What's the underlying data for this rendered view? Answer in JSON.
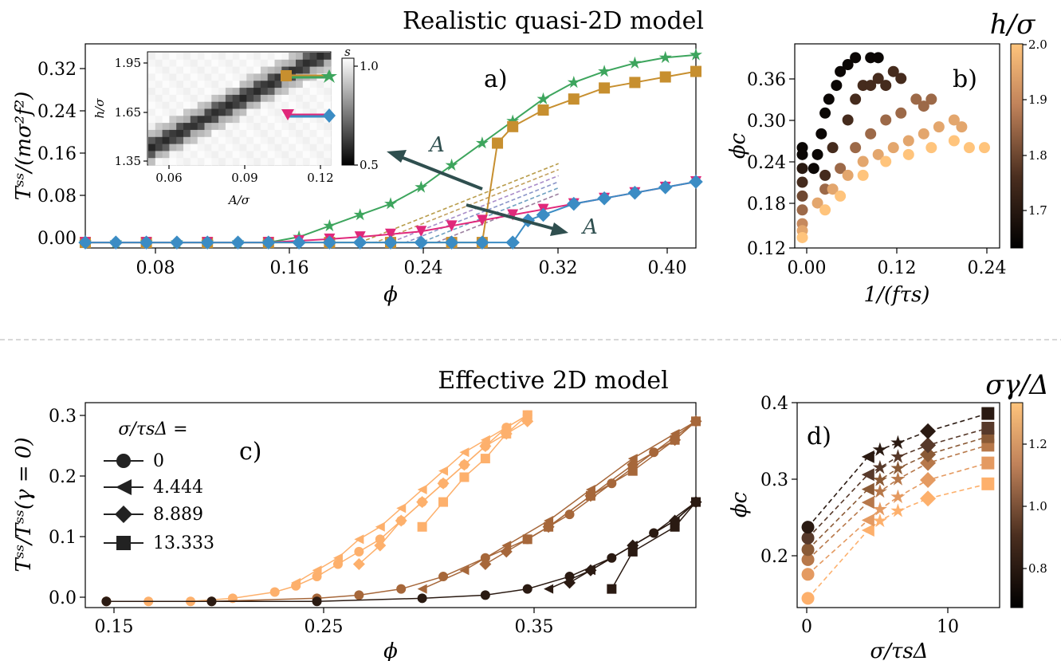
{
  "titles": {
    "top": "Realistic quasi-2D model",
    "bottom": "Effective 2D model"
  },
  "labels": {
    "a_x": "ϕ",
    "a_y": "Tˢˢ/(mσ²f²)",
    "b_x": "1/(fτs)",
    "b_y": "ϕc",
    "b_cbar": "h/σ",
    "c_x": "ϕ",
    "c_y": "Tˢˢ/Tˢˢ(γ = 0)",
    "d_x": "σ/τsΔ",
    "d_y": "ϕc",
    "d_cbar": "σγ/Δ",
    "inset_x": "A/σ",
    "inset_y": "h/σ",
    "inset_cbar": "s",
    "arrow_A1": "A",
    "arrow_A2": "A",
    "legend_title": "σ/τsΔ ="
  },
  "panel_labels": {
    "a": "a)",
    "b": "b)",
    "c": "c)",
    "d": "d)"
  },
  "ticks": {
    "a_x": [
      "0.08",
      "0.16",
      "0.24",
      "0.32",
      "0.40"
    ],
    "a_y": [
      "0.00",
      "0.08",
      "0.16",
      "0.24",
      "0.32"
    ],
    "b_x": [
      "0.00",
      "0.12",
      "0.24"
    ],
    "b_y": [
      "0.12",
      "0.18",
      "0.24",
      "0.30",
      "0.36"
    ],
    "b_cbar": [
      "1.7",
      "1.8",
      "1.9",
      "2.0"
    ],
    "c_x": [
      "0.15",
      "0.25",
      "0.35"
    ],
    "c_y": [
      "0.0",
      "0.1",
      "0.2",
      "0.3"
    ],
    "d_x": [
      "0",
      "10"
    ],
    "d_y": [
      "0.2",
      "0.3",
      "0.4"
    ],
    "d_cbar": [
      "0.8",
      "1.0",
      "1.2"
    ],
    "inset_x": [
      "0.06",
      "0.09",
      "0.12"
    ],
    "inset_y": [
      "1.35",
      "1.65",
      "1.95"
    ],
    "inset_cbar": [
      "0.5",
      "1.0"
    ]
  },
  "chart_data": [
    {
      "id": "a",
      "type": "line",
      "xlim": [
        0.04,
        0.44
      ],
      "ylim": [
        -0.01,
        0.36
      ],
      "series": [
        {
          "marker": "star",
          "color": "#3da55d",
          "x": [
            0.04,
            0.06,
            0.08,
            0.1,
            0.12,
            0.14,
            0.16,
            0.18,
            0.2,
            0.22,
            0.24,
            0.26,
            0.28,
            0.3,
            0.32,
            0.34,
            0.36,
            0.38,
            0.4,
            0.42,
            0.44
          ],
          "y": [
            0.0,
            0.0,
            0.0,
            0.0,
            0.0,
            0.0,
            0.0,
            0.01,
            0.03,
            0.05,
            0.07,
            0.1,
            0.14,
            0.18,
            0.22,
            0.26,
            0.29,
            0.31,
            0.325,
            0.335,
            0.34
          ]
        },
        {
          "marker": "square",
          "color": "#c78f2f",
          "x": [
            0.04,
            0.08,
            0.12,
            0.16,
            0.2,
            0.24,
            0.28,
            0.3,
            0.31,
            0.32,
            0.34,
            0.36,
            0.38,
            0.4,
            0.42,
            0.44
          ],
          "y": [
            0.0,
            0.0,
            0.0,
            0.0,
            0.0,
            0.0,
            0.0,
            0.0,
            0.18,
            0.21,
            0.24,
            0.26,
            0.28,
            0.29,
            0.3,
            0.31
          ]
        },
        {
          "marker": "tri_down",
          "color": "#e0287a",
          "x": [
            0.04,
            0.08,
            0.12,
            0.16,
            0.18,
            0.2,
            0.22,
            0.24,
            0.26,
            0.28,
            0.3,
            0.32,
            0.34,
            0.36,
            0.38,
            0.4,
            0.42,
            0.44
          ],
          "y": [
            0.0,
            0.0,
            0.0,
            0.0,
            0.003,
            0.006,
            0.01,
            0.015,
            0.02,
            0.03,
            0.04,
            0.05,
            0.06,
            0.07,
            0.08,
            0.09,
            0.1,
            0.11
          ]
        },
        {
          "marker": "diamond",
          "color": "#3b8cc4",
          "x": [
            0.04,
            0.06,
            0.08,
            0.1,
            0.12,
            0.14,
            0.16,
            0.18,
            0.2,
            0.22,
            0.24,
            0.26,
            0.28,
            0.3,
            0.32,
            0.33,
            0.34,
            0.36,
            0.38,
            0.4,
            0.42,
            0.44
          ],
          "y": [
            0.0,
            0.0,
            0.0,
            0.0,
            0.0,
            0.0,
            0.0,
            0.0,
            0.0,
            0.0,
            0.0,
            0.0,
            0.0,
            0.0,
            0.0,
            0.04,
            0.05,
            0.07,
            0.08,
            0.09,
            0.1,
            0.11
          ]
        }
      ]
    },
    {
      "id": "b",
      "type": "scatter",
      "xlim": [
        -0.01,
        0.26
      ],
      "ylim": [
        0.115,
        0.41
      ],
      "colorbar": {
        "label": "h/σ",
        "range": [
          1.63,
          2.0
        ]
      },
      "points": [
        {
          "x": 0.0,
          "y": 0.26,
          "c": 1.65
        },
        {
          "x": 0.0,
          "y": 0.25,
          "c": 1.65
        },
        {
          "x": 0.0,
          "y": 0.23,
          "c": 1.7
        },
        {
          "x": 0.0,
          "y": 0.21,
          "c": 1.75
        },
        {
          "x": 0.0,
          "y": 0.19,
          "c": 1.8
        },
        {
          "x": 0.0,
          "y": 0.17,
          "c": 1.85
        },
        {
          "x": 0.0,
          "y": 0.15,
          "c": 1.9
        },
        {
          "x": 0.0,
          "y": 0.14,
          "c": 1.95
        },
        {
          "x": 0.0,
          "y": 0.13,
          "c": 2.0
        },
        {
          "x": 0.015,
          "y": 0.23,
          "c": 1.65
        },
        {
          "x": 0.02,
          "y": 0.25,
          "c": 1.65
        },
        {
          "x": 0.025,
          "y": 0.28,
          "c": 1.65
        },
        {
          "x": 0.03,
          "y": 0.31,
          "c": 1.65
        },
        {
          "x": 0.035,
          "y": 0.33,
          "c": 1.65
        },
        {
          "x": 0.045,
          "y": 0.35,
          "c": 1.65
        },
        {
          "x": 0.05,
          "y": 0.37,
          "c": 1.65
        },
        {
          "x": 0.06,
          "y": 0.38,
          "c": 1.65
        },
        {
          "x": 0.07,
          "y": 0.39,
          "c": 1.65
        },
        {
          "x": 0.09,
          "y": 0.39,
          "c": 1.65
        },
        {
          "x": 0.1,
          "y": 0.39,
          "c": 1.65
        },
        {
          "x": 0.03,
          "y": 0.22,
          "c": 1.75
        },
        {
          "x": 0.04,
          "y": 0.26,
          "c": 1.75
        },
        {
          "x": 0.06,
          "y": 0.3,
          "c": 1.75
        },
        {
          "x": 0.07,
          "y": 0.33,
          "c": 1.75
        },
        {
          "x": 0.08,
          "y": 0.35,
          "c": 1.75
        },
        {
          "x": 0.09,
          "y": 0.35,
          "c": 1.75
        },
        {
          "x": 0.1,
          "y": 0.36,
          "c": 1.75
        },
        {
          "x": 0.11,
          "y": 0.35,
          "c": 1.75
        },
        {
          "x": 0.12,
          "y": 0.37,
          "c": 1.75
        },
        {
          "x": 0.13,
          "y": 0.36,
          "c": 1.75
        },
        {
          "x": 0.03,
          "y": 0.2,
          "c": 1.85
        },
        {
          "x": 0.05,
          "y": 0.23,
          "c": 1.85
        },
        {
          "x": 0.07,
          "y": 0.26,
          "c": 1.85
        },
        {
          "x": 0.09,
          "y": 0.28,
          "c": 1.85
        },
        {
          "x": 0.11,
          "y": 0.3,
          "c": 1.85
        },
        {
          "x": 0.13,
          "y": 0.31,
          "c": 1.85
        },
        {
          "x": 0.15,
          "y": 0.33,
          "c": 1.85
        },
        {
          "x": 0.16,
          "y": 0.32,
          "c": 1.85
        },
        {
          "x": 0.17,
          "y": 0.33,
          "c": 1.85
        },
        {
          "x": 0.02,
          "y": 0.18,
          "c": 1.95
        },
        {
          "x": 0.04,
          "y": 0.2,
          "c": 1.95
        },
        {
          "x": 0.06,
          "y": 0.22,
          "c": 1.95
        },
        {
          "x": 0.08,
          "y": 0.24,
          "c": 1.95
        },
        {
          "x": 0.1,
          "y": 0.25,
          "c": 1.95
        },
        {
          "x": 0.12,
          "y": 0.26,
          "c": 1.95
        },
        {
          "x": 0.14,
          "y": 0.27,
          "c": 1.95
        },
        {
          "x": 0.16,
          "y": 0.28,
          "c": 1.95
        },
        {
          "x": 0.18,
          "y": 0.29,
          "c": 1.95
        },
        {
          "x": 0.2,
          "y": 0.3,
          "c": 1.95
        },
        {
          "x": 0.21,
          "y": 0.29,
          "c": 1.95
        },
        {
          "x": 0.03,
          "y": 0.17,
          "c": 2.0
        },
        {
          "x": 0.05,
          "y": 0.19,
          "c": 2.0
        },
        {
          "x": 0.08,
          "y": 0.22,
          "c": 2.0
        },
        {
          "x": 0.11,
          "y": 0.24,
          "c": 2.0
        },
        {
          "x": 0.14,
          "y": 0.25,
          "c": 2.0
        },
        {
          "x": 0.17,
          "y": 0.26,
          "c": 2.0
        },
        {
          "x": 0.2,
          "y": 0.27,
          "c": 2.0
        },
        {
          "x": 0.22,
          "y": 0.26,
          "c": 2.0
        },
        {
          "x": 0.24,
          "y": 0.26,
          "c": 2.0
        }
      ]
    },
    {
      "id": "c",
      "type": "line",
      "xlim": [
        0.14,
        0.43
      ],
      "ylim": [
        -0.01,
        0.32
      ],
      "legend": {
        "title": "σ/τsΔ =",
        "entries": [
          {
            "label": "0",
            "marker": "circle"
          },
          {
            "label": "4.444",
            "marker": "tri_left"
          },
          {
            "label": "8.889",
            "marker": "diamond"
          },
          {
            "label": "13.333",
            "marker": "square"
          }
        ]
      },
      "series": [
        {
          "group": "light",
          "color": "#fdb06c",
          "marker": "circle",
          "x": [
            0.15,
            0.17,
            0.19,
            0.21,
            0.23,
            0.24,
            0.25,
            0.26,
            0.27,
            0.28,
            0.29,
            0.3,
            0.31,
            0.32,
            0.33,
            0.34,
            0.35
          ],
          "y": [
            0.0,
            0.0,
            0.0,
            0.005,
            0.015,
            0.025,
            0.04,
            0.06,
            0.08,
            0.1,
            0.13,
            0.16,
            0.19,
            0.22,
            0.25,
            0.28,
            0.3
          ]
        },
        {
          "group": "light",
          "color": "#fdb06c",
          "marker": "tri_left",
          "x": [
            0.24,
            0.25,
            0.26,
            0.27,
            0.28,
            0.29,
            0.3,
            0.31,
            0.32,
            0.33,
            0.34,
            0.35
          ],
          "y": [
            0.03,
            0.05,
            0.07,
            0.1,
            0.12,
            0.15,
            0.18,
            0.21,
            0.24,
            0.26,
            0.28,
            0.3
          ]
        },
        {
          "group": "light",
          "color": "#fdb06c",
          "marker": "diamond",
          "x": [
            0.27,
            0.28,
            0.29,
            0.3,
            0.31,
            0.32,
            0.33,
            0.34,
            0.35
          ],
          "y": [
            0.06,
            0.09,
            0.13,
            0.16,
            0.19,
            0.22,
            0.25,
            0.27,
            0.29
          ]
        },
        {
          "group": "light",
          "color": "#fdb06c",
          "marker": "square",
          "x": [
            0.3,
            0.31,
            0.32,
            0.33,
            0.34,
            0.35
          ],
          "y": [
            0.12,
            0.16,
            0.2,
            0.23,
            0.27,
            0.3
          ]
        },
        {
          "group": "mid",
          "color": "#a6673a",
          "marker": "circle",
          "x": [
            0.15,
            0.2,
            0.25,
            0.27,
            0.29,
            0.31,
            0.33,
            0.35,
            0.37,
            0.39,
            0.41,
            0.43
          ],
          "y": [
            0.0,
            0.0,
            0.005,
            0.01,
            0.02,
            0.04,
            0.07,
            0.1,
            0.14,
            0.19,
            0.24,
            0.29
          ]
        },
        {
          "group": "mid",
          "color": "#a6673a",
          "marker": "tri_left",
          "x": [
            0.3,
            0.32,
            0.34,
            0.36,
            0.38,
            0.4,
            0.42,
            0.43
          ],
          "y": [
            0.02,
            0.05,
            0.09,
            0.13,
            0.18,
            0.23,
            0.27,
            0.29
          ]
        },
        {
          "group": "mid",
          "color": "#a6673a",
          "marker": "diamond",
          "x": [
            0.33,
            0.34,
            0.36,
            0.38,
            0.4,
            0.42,
            0.43
          ],
          "y": [
            0.06,
            0.08,
            0.12,
            0.17,
            0.22,
            0.26,
            0.29
          ]
        },
        {
          "group": "mid",
          "color": "#a6673a",
          "marker": "square",
          "x": [
            0.35,
            0.36,
            0.38,
            0.4,
            0.42,
            0.43
          ],
          "y": [
            0.1,
            0.12,
            0.17,
            0.21,
            0.26,
            0.29
          ]
        },
        {
          "group": "dark",
          "color": "#2a1a12",
          "marker": "circle",
          "x": [
            0.15,
            0.2,
            0.25,
            0.3,
            0.33,
            0.35,
            0.37,
            0.39,
            0.41,
            0.43
          ],
          "y": [
            0.0,
            0.0,
            0.0,
            0.005,
            0.01,
            0.02,
            0.04,
            0.07,
            0.11,
            0.16
          ]
        },
        {
          "group": "dark",
          "color": "#2a1a12",
          "marker": "tri_left",
          "x": [
            0.36,
            0.38,
            0.4,
            0.42,
            0.43
          ],
          "y": [
            0.02,
            0.05,
            0.09,
            0.13,
            0.16
          ]
        },
        {
          "group": "dark",
          "color": "#2a1a12",
          "marker": "diamond",
          "x": [
            0.37,
            0.38,
            0.4,
            0.42,
            0.43
          ],
          "y": [
            0.03,
            0.05,
            0.09,
            0.13,
            0.16
          ]
        },
        {
          "group": "dark",
          "color": "#2a1a12",
          "marker": "square",
          "x": [
            0.39,
            0.4,
            0.42,
            0.43
          ],
          "y": [
            0.02,
            0.08,
            0.12,
            0.16
          ]
        }
      ]
    },
    {
      "id": "d",
      "type": "line",
      "xlim": [
        -0.8,
        14.2
      ],
      "ylim": [
        0.135,
        0.4
      ],
      "colorbar": {
        "label": "σγ/Δ",
        "range": [
          0.66,
          1.32
        ]
      },
      "x": [
        0,
        4.444,
        5.333,
        6.667,
        8.889,
        13.333
      ],
      "series": [
        {
          "color": "#fdb06c",
          "values": [
            0.147,
            0.235,
            0.247,
            0.26,
            0.276,
            0.295
          ]
        },
        {
          "color": "#e49a61",
          "values": [
            0.178,
            0.248,
            0.262,
            0.278,
            0.3,
            0.322
          ]
        },
        {
          "color": "#b7784a",
          "values": [
            0.197,
            0.271,
            0.285,
            0.301,
            0.322,
            0.345
          ]
        },
        {
          "color": "#8a5a36",
          "values": [
            0.21,
            0.288,
            0.3,
            0.315,
            0.333,
            0.356
          ]
        },
        {
          "color": "#57392a",
          "values": [
            0.225,
            0.307,
            0.316,
            0.33,
            0.345,
            0.367
          ]
        },
        {
          "color": "#2a1a12",
          "values": [
            0.239,
            0.33,
            0.339,
            0.348,
            0.363,
            0.386
          ]
        }
      ]
    }
  ]
}
